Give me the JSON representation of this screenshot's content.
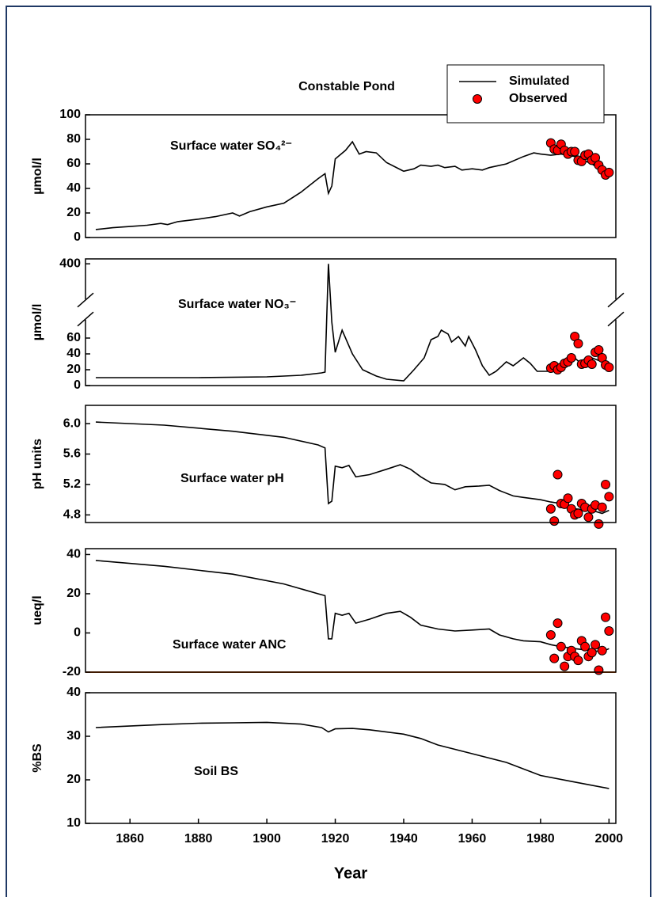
{
  "chart_data": [
    {
      "type": "line",
      "title": "Constable Pond",
      "ylabel": "µmol/l",
      "annotation": "Surface water SO₄²⁻",
      "legend": "top-right",
      "xlim": [
        1847,
        2002
      ],
      "ylim": [
        0,
        100
      ],
      "yticks": [
        0,
        20,
        40,
        60,
        80,
        100
      ],
      "series": [
        {
          "name": "Simulated",
          "mode": "line",
          "color": "#000000",
          "x": [
            1850,
            1855,
            1860,
            1865,
            1869,
            1871,
            1874,
            1880,
            1885,
            1890,
            1892,
            1895,
            1900,
            1905,
            1910,
            1915,
            1917,
            1918,
            1919,
            1920,
            1923,
            1925,
            1927,
            1929,
            1932,
            1935,
            1940,
            1943,
            1945,
            1948,
            1950,
            1952,
            1955,
            1957,
            1960,
            1963,
            1965,
            1970,
            1975,
            1978,
            1980,
            1983,
            1986,
            1990,
            1995,
            1998,
            2000
          ],
          "values": [
            6.5,
            8,
            9,
            10,
            11.5,
            10.5,
            13,
            15,
            17,
            20,
            17.5,
            21,
            25,
            28,
            37,
            48,
            52,
            36,
            42,
            64,
            71,
            78,
            68,
            70,
            69,
            61,
            54,
            56,
            59,
            58,
            59,
            57,
            58,
            55,
            56,
            55,
            57,
            60,
            66,
            69,
            68,
            67,
            68,
            66,
            60,
            54,
            53
          ]
        },
        {
          "name": "Observed",
          "mode": "markers",
          "color": "#ff0000",
          "x": [
            1983,
            1984,
            1985,
            1986,
            1987,
            1988,
            1989,
            1990,
            1991,
            1992,
            1993,
            1994,
            1995,
            1996,
            1997,
            1998,
            1999,
            2000
          ],
          "values": [
            77,
            72,
            71,
            76,
            71,
            68,
            70,
            70,
            63,
            62,
            67,
            68,
            63,
            65,
            59,
            55,
            51,
            53
          ]
        }
      ]
    },
    {
      "type": "line",
      "ylabel": "µmol/l",
      "annotation": "Surface water NO₃⁻",
      "xlim": [
        1847,
        2002
      ],
      "ylim": [
        0,
        403
      ],
      "ybreak": [
        80,
        380
      ],
      "yticks": [
        0,
        20,
        40,
        60,
        400
      ],
      "series": [
        {
          "mode": "line",
          "color": "#000000",
          "x": [
            1850,
            1880,
            1900,
            1910,
            1916,
            1917,
            1918,
            1919,
            1920,
            1922,
            1925,
            1928,
            1932,
            1935,
            1940,
            1943,
            1946,
            1948,
            1950,
            1951,
            1953,
            1954,
            1956,
            1958,
            1959,
            1961,
            1963,
            1965,
            1967,
            1970,
            1972,
            1975,
            1977,
            1979,
            1982,
            1985,
            1988,
            1990,
            1992,
            1995,
            1998,
            2000
          ],
          "values": [
            10,
            10,
            11,
            13,
            16,
            17,
            400,
            80,
            42,
            70,
            40,
            20,
            12,
            8,
            6,
            20,
            35,
            58,
            62,
            70,
            65,
            55,
            62,
            50,
            62,
            45,
            25,
            13,
            18,
            30,
            25,
            35,
            28,
            18,
            18,
            25,
            28,
            35,
            27,
            35,
            30,
            22
          ]
        },
        {
          "mode": "markers",
          "color": "#ff0000",
          "x": [
            1983,
            1984,
            1985,
            1986,
            1987,
            1988,
            1989,
            1990,
            1991,
            1992,
            1993,
            1994,
            1995,
            1996,
            1997,
            1998,
            1999,
            2000
          ],
          "values": [
            22,
            25,
            20,
            23,
            28,
            30,
            35,
            62,
            53,
            27,
            28,
            32,
            27,
            42,
            45,
            35,
            26,
            23
          ]
        }
      ]
    },
    {
      "type": "line",
      "ylabel": "pH units",
      "annotation": "Surface water pH",
      "xlim": [
        1847,
        2002
      ],
      "ylim": [
        4.7,
        6.24
      ],
      "yticks": [
        4.8,
        5.2,
        5.6,
        {
          "value": 6,
          "label": "6.0"
        }
      ],
      "series": [
        {
          "mode": "line",
          "color": "#000000",
          "x": [
            1850,
            1870,
            1890,
            1905,
            1915,
            1917,
            1918,
            1919,
            1920,
            1922,
            1924,
            1926,
            1930,
            1935,
            1939,
            1942,
            1945,
            1948,
            1952,
            1955,
            1958,
            1962,
            1965,
            1968,
            1972,
            1975,
            1980,
            1983,
            1986,
            1990,
            1995,
            1998,
            2000
          ],
          "values": [
            6.02,
            5.98,
            5.9,
            5.82,
            5.72,
            5.68,
            4.95,
            4.98,
            5.44,
            5.42,
            5.45,
            5.3,
            5.33,
            5.4,
            5.46,
            5.4,
            5.3,
            5.22,
            5.2,
            5.13,
            5.17,
            5.18,
            5.19,
            5.12,
            5.05,
            5.03,
            5.0,
            4.97,
            4.95,
            4.88,
            4.86,
            4.82,
            4.86
          ]
        },
        {
          "mode": "markers",
          "color": "#ff0000",
          "x": [
            1983,
            1984,
            1985,
            1986,
            1987,
            1988,
            1989,
            1990,
            1991,
            1992,
            1993,
            1994,
            1995,
            1996,
            1997,
            1998,
            1999,
            2000
          ],
          "values": [
            4.88,
            4.72,
            5.33,
            4.95,
            4.94,
            5.02,
            4.88,
            4.8,
            4.82,
            4.95,
            4.9,
            4.77,
            4.88,
            4.93,
            4.68,
            4.9,
            5.2,
            5.04
          ]
        }
      ]
    },
    {
      "type": "line",
      "ylabel": "ueq/l",
      "annotation": "Surface water ANC",
      "xlim": [
        1847,
        2002
      ],
      "ylim": [
        -20,
        43
      ],
      "yticks": [
        -20,
        0,
        20,
        40
      ],
      "hline": {
        "value": -20,
        "color": "#ff6600"
      },
      "series": [
        {
          "mode": "line",
          "color": "#000000",
          "x": [
            1850,
            1870,
            1890,
            1905,
            1915,
            1917,
            1918,
            1919,
            1920,
            1922,
            1924,
            1926,
            1930,
            1935,
            1939,
            1942,
            1945,
            1950,
            1955,
            1960,
            1965,
            1968,
            1972,
            1975,
            1980,
            1983,
            1986,
            1990,
            1995,
            1998,
            2000
          ],
          "values": [
            37,
            34,
            30,
            25,
            20,
            19,
            -3,
            -3,
            10,
            9,
            10,
            5,
            7,
            10,
            11,
            8,
            4,
            2,
            1,
            1.5,
            2,
            -1,
            -3,
            -4,
            -4.5,
            -6,
            -7,
            -8,
            -9,
            -9.5,
            -8
          ]
        },
        {
          "mode": "markers",
          "color": "#ff0000",
          "x": [
            1983,
            1984,
            1985,
            1986,
            1987,
            1988,
            1989,
            1990,
            1991,
            1992,
            1993,
            1994,
            1995,
            1996,
            1997,
            1998,
            1999,
            2000
          ],
          "values": [
            -1,
            -13,
            5,
            -7,
            -17,
            -12,
            -9,
            -12,
            -14,
            -4,
            -7,
            -12,
            -10,
            -6,
            -19,
            -9,
            8,
            1
          ]
        }
      ]
    },
    {
      "type": "line",
      "ylabel": "%BS",
      "annotation": "Soil BS",
      "xlabel": "Year",
      "xlim": [
        1847,
        2002
      ],
      "xticks": [
        1860,
        1880,
        1900,
        1920,
        1940,
        1960,
        1980,
        2000
      ],
      "ylim": [
        10,
        40
      ],
      "yticks": [
        10,
        20,
        30,
        40
      ],
      "series": [
        {
          "mode": "line",
          "color": "#000000",
          "x": [
            1850,
            1870,
            1880,
            1890,
            1900,
            1910,
            1916,
            1918,
            1920,
            1925,
            1930,
            1940,
            1945,
            1950,
            1960,
            1970,
            1980,
            1990,
            2000
          ],
          "values": [
            32,
            32.7,
            33,
            33.1,
            33.2,
            32.8,
            32,
            31,
            31.7,
            31.8,
            31.5,
            30.5,
            29.5,
            28,
            26,
            24,
            21,
            19.5,
            18
          ]
        }
      ]
    }
  ]
}
